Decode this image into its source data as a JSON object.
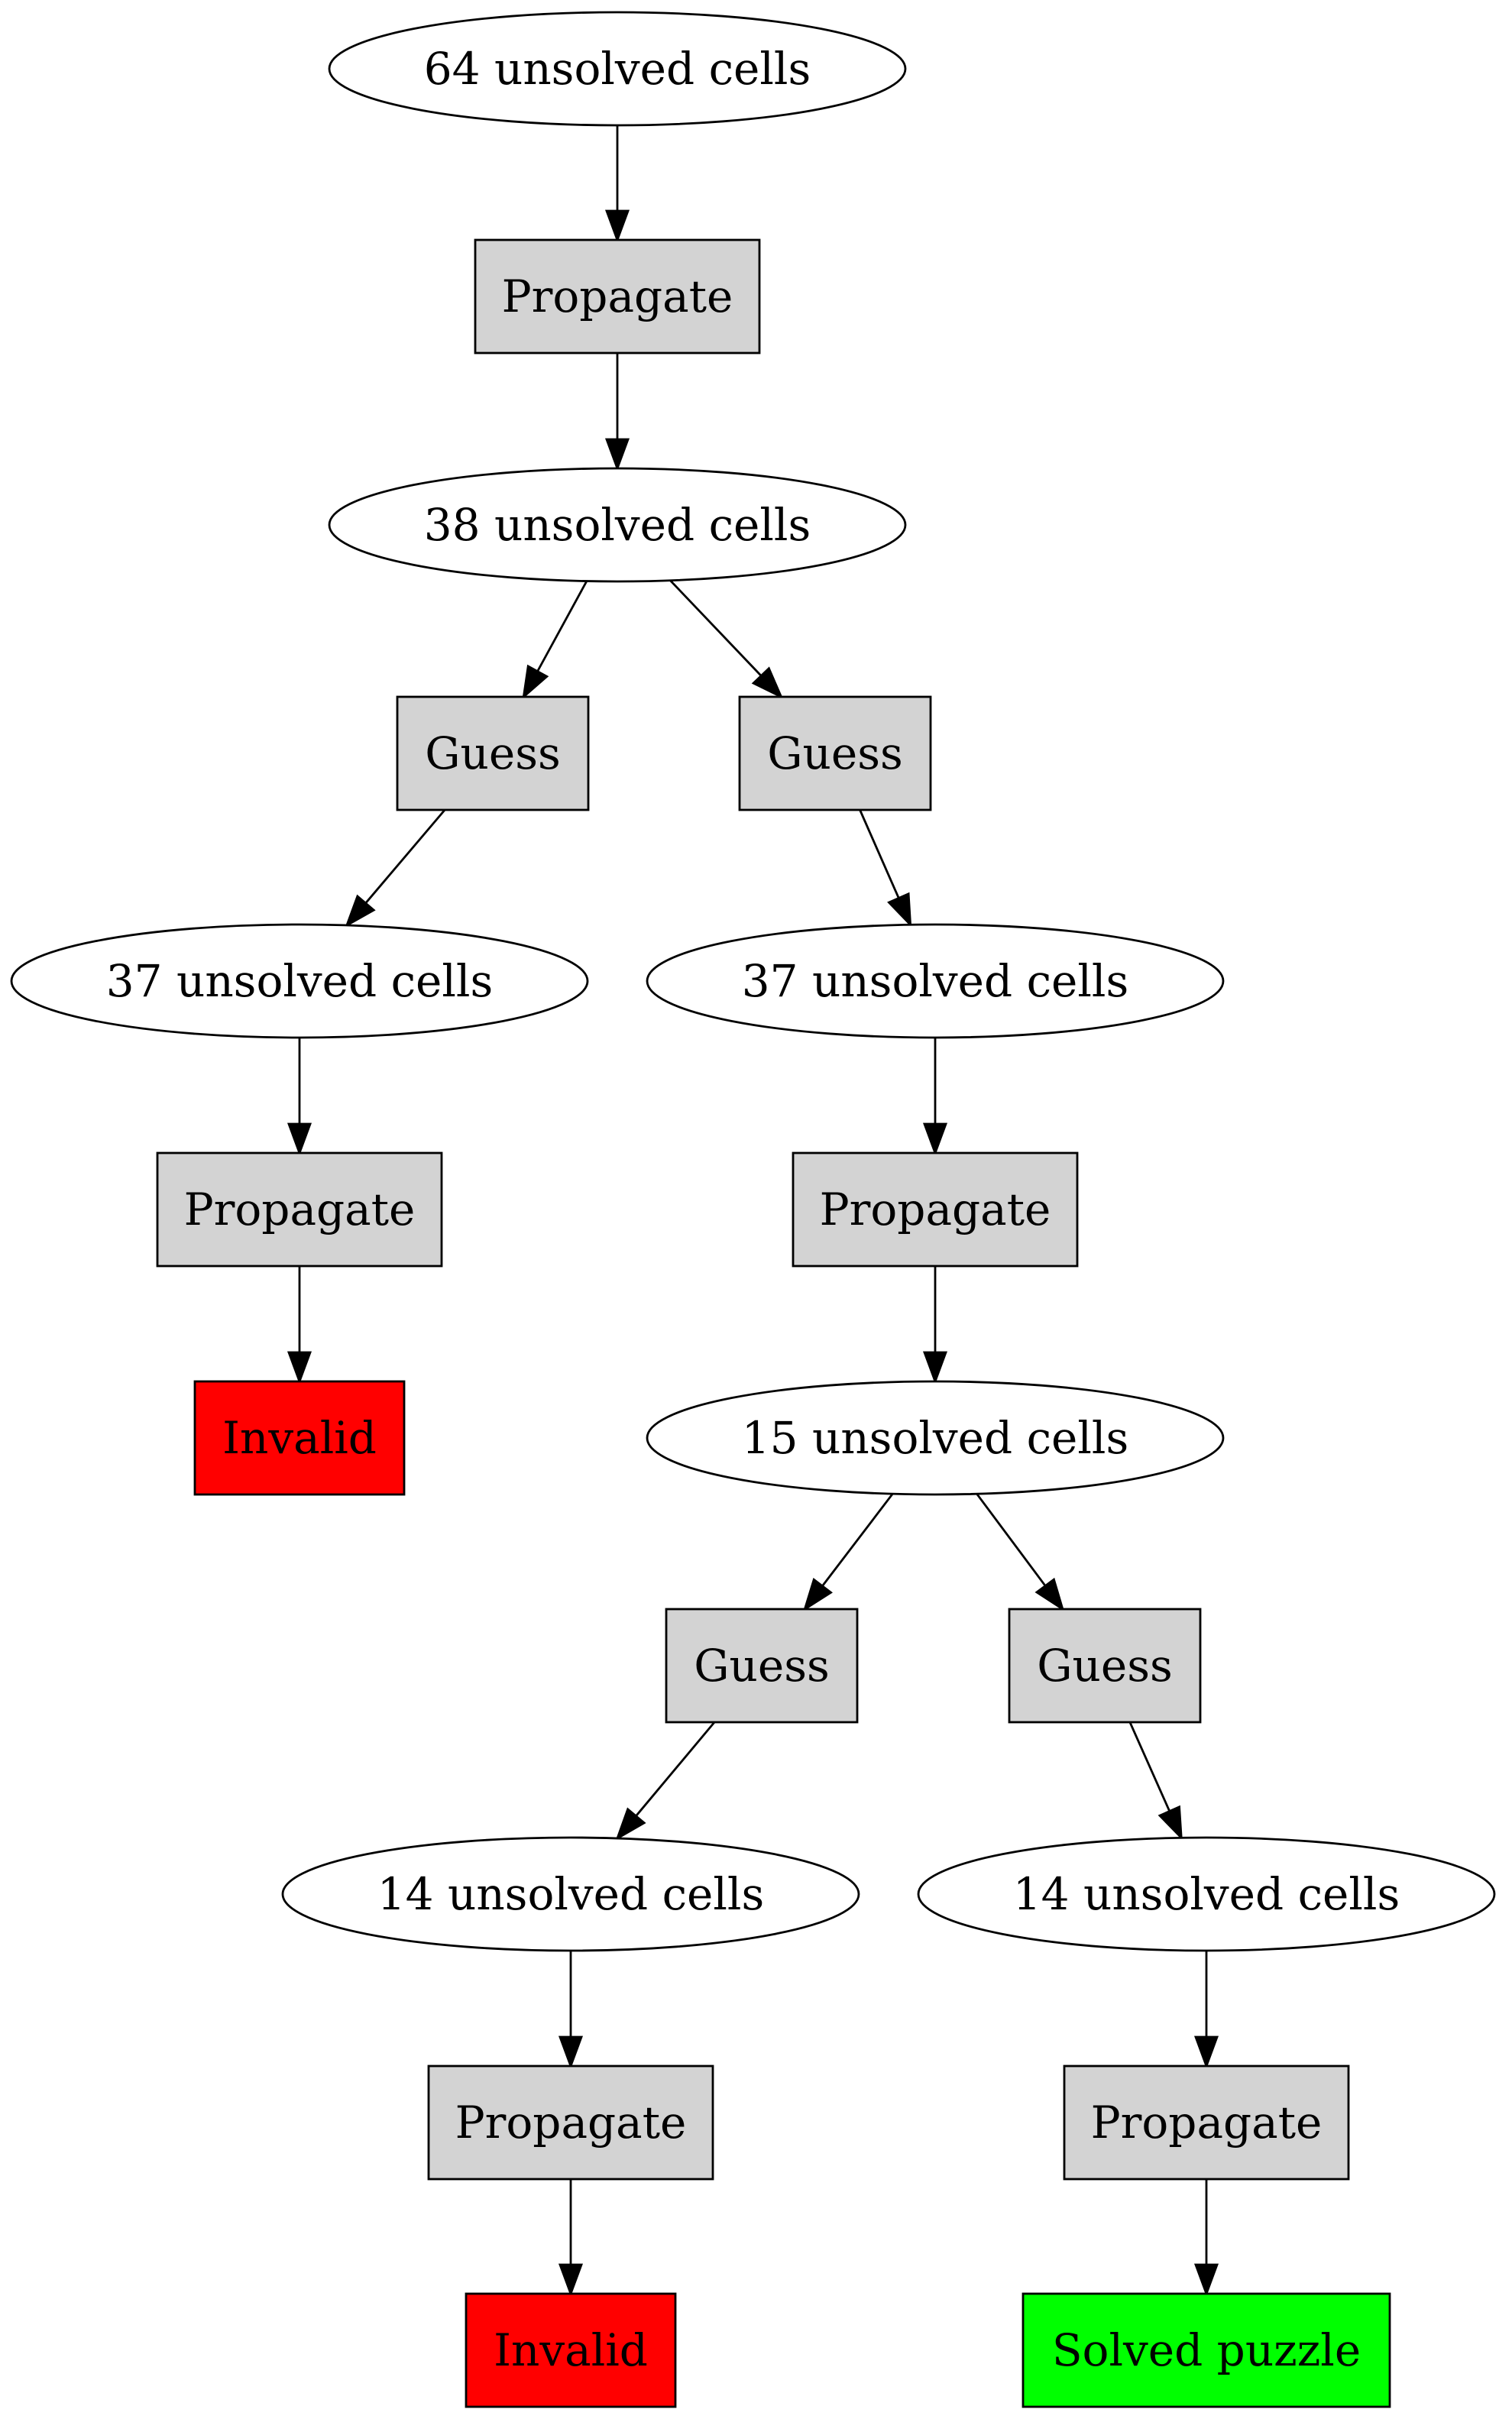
{
  "diagram": {
    "type": "search-tree",
    "nodes": [
      {
        "id": "n1",
        "shape": "ellipse",
        "label": "64 unsolved cells"
      },
      {
        "id": "p1",
        "shape": "box",
        "label": "Propagate",
        "fill": "#d3d3d3"
      },
      {
        "id": "n2",
        "shape": "ellipse",
        "label": "38 unsolved cells"
      },
      {
        "id": "g1",
        "shape": "box",
        "label": "Guess",
        "fill": "#d3d3d3"
      },
      {
        "id": "g2",
        "shape": "box",
        "label": "Guess",
        "fill": "#d3d3d3"
      },
      {
        "id": "n3",
        "shape": "ellipse",
        "label": "37 unsolved cells"
      },
      {
        "id": "n4",
        "shape": "ellipse",
        "label": "37 unsolved cells"
      },
      {
        "id": "p2",
        "shape": "box",
        "label": "Propagate",
        "fill": "#d3d3d3"
      },
      {
        "id": "p3",
        "shape": "box",
        "label": "Propagate",
        "fill": "#d3d3d3"
      },
      {
        "id": "x1",
        "shape": "box",
        "label": "Invalid",
        "fill": "#ff0000"
      },
      {
        "id": "n5",
        "shape": "ellipse",
        "label": "15 unsolved cells"
      },
      {
        "id": "g3",
        "shape": "box",
        "label": "Guess",
        "fill": "#d3d3d3"
      },
      {
        "id": "g4",
        "shape": "box",
        "label": "Guess",
        "fill": "#d3d3d3"
      },
      {
        "id": "n6",
        "shape": "ellipse",
        "label": "14 unsolved cells"
      },
      {
        "id": "n7",
        "shape": "ellipse",
        "label": "14 unsolved cells"
      },
      {
        "id": "p4",
        "shape": "box",
        "label": "Propagate",
        "fill": "#d3d3d3"
      },
      {
        "id": "p5",
        "shape": "box",
        "label": "Propagate",
        "fill": "#d3d3d3"
      },
      {
        "id": "x2",
        "shape": "box",
        "label": "Invalid",
        "fill": "#ff0000"
      },
      {
        "id": "s1",
        "shape": "box",
        "label": "Solved puzzle",
        "fill": "#00ff00"
      }
    ],
    "edges": [
      {
        "from": "n1",
        "to": "p1"
      },
      {
        "from": "p1",
        "to": "n2"
      },
      {
        "from": "n2",
        "to": "g1"
      },
      {
        "from": "n2",
        "to": "g2"
      },
      {
        "from": "g1",
        "to": "n3"
      },
      {
        "from": "g2",
        "to": "n4"
      },
      {
        "from": "n3",
        "to": "p2"
      },
      {
        "from": "n4",
        "to": "p3"
      },
      {
        "from": "p2",
        "to": "x1"
      },
      {
        "from": "p3",
        "to": "n5"
      },
      {
        "from": "n5",
        "to": "g3"
      },
      {
        "from": "n5",
        "to": "g4"
      },
      {
        "from": "g3",
        "to": "n6"
      },
      {
        "from": "g4",
        "to": "n7"
      },
      {
        "from": "n6",
        "to": "p4"
      },
      {
        "from": "n7",
        "to": "p5"
      },
      {
        "from": "p4",
        "to": "x2"
      },
      {
        "from": "p5",
        "to": "s1"
      }
    ]
  }
}
